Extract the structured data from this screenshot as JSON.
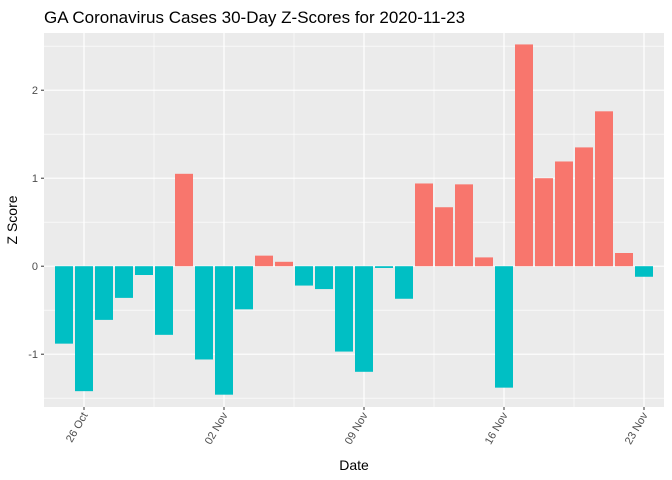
{
  "chart_data": {
    "type": "bar",
    "title": "GA Coronavirus Cases 30-Day Z-Scores for 2020-11-23",
    "xlabel": "Date",
    "ylabel": "Z Score",
    "x_range": [
      "2020-10-24",
      "2020-11-24"
    ],
    "ylim": [
      -1.6,
      2.65
    ],
    "y_ticks": [
      -1,
      0,
      1,
      2
    ],
    "y_tick_labels": [
      "-1",
      "0",
      "1",
      "2"
    ],
    "x_ticks": [
      "2020-10-26",
      "2020-11-02",
      "2020-11-09",
      "2020-11-16",
      "2020-11-23"
    ],
    "x_tick_labels": [
      "26 Oct",
      "02 Nov",
      "09 Nov",
      "16 Nov",
      "23 Nov"
    ],
    "grid": true,
    "colors": {
      "positive": "#F8766D",
      "negative": "#00BFC4",
      "panel": "#EBEBEB",
      "grid": "#FFFFFF"
    },
    "series": [
      {
        "x": [
          "2020-10-25",
          "2020-10-26",
          "2020-10-27",
          "2020-10-28",
          "2020-10-29",
          "2020-10-30",
          "2020-10-31",
          "2020-11-01",
          "2020-11-02",
          "2020-11-03",
          "2020-11-04",
          "2020-11-05",
          "2020-11-06",
          "2020-11-07",
          "2020-11-08",
          "2020-11-09",
          "2020-11-10",
          "2020-11-11",
          "2020-11-12",
          "2020-11-13",
          "2020-11-14",
          "2020-11-15",
          "2020-11-16",
          "2020-11-17",
          "2020-11-18",
          "2020-11-19",
          "2020-11-20",
          "2020-11-21",
          "2020-11-22",
          "2020-11-23"
        ],
        "values": [
          -0.88,
          -1.42,
          -0.61,
          -0.36,
          -0.1,
          -0.78,
          1.05,
          -1.06,
          -1.46,
          -0.49,
          0.12,
          0.05,
          -0.22,
          -0.26,
          -0.97,
          -1.2,
          -0.02,
          -0.37,
          0.94,
          0.67,
          0.93,
          0.1,
          -1.38,
          2.52,
          1.0,
          1.19,
          1.35,
          1.76,
          0.15,
          -0.12
        ]
      }
    ]
  }
}
